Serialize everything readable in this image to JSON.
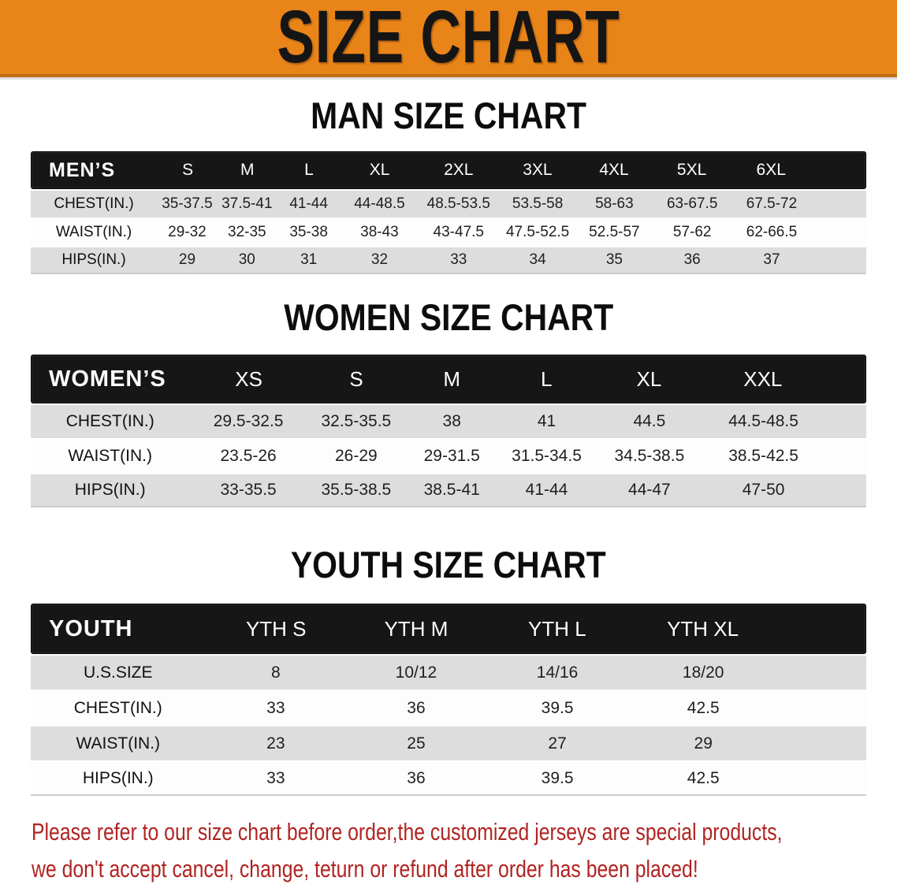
{
  "banner": {
    "title": "SIZE CHART"
  },
  "sections": [
    {
      "id": "men",
      "heading": "MAN SIZE CHART",
      "label": "MEN’S",
      "sizes": [
        "S",
        "M",
        "L",
        "XL",
        "2XL",
        "3XL",
        "4XL",
        "5XL",
        "6XL"
      ],
      "rows": [
        {
          "label": "CHEST(IN.)",
          "values": [
            "35-37.5",
            "37.5-41",
            "41-44",
            "44-48.5",
            "48.5-53.5",
            "53.5-58",
            "58-63",
            "63-67.5",
            "67.5-72"
          ]
        },
        {
          "label": "WAIST(IN.)",
          "values": [
            "29-32",
            "32-35",
            "35-38",
            "38-43",
            "43-47.5",
            "47.5-52.5",
            "52.5-57",
            "57-62",
            "62-66.5"
          ]
        },
        {
          "label": "HIPS(IN.)",
          "values": [
            "29",
            "30",
            "31",
            "32",
            "33",
            "34",
            "35",
            "36",
            "37"
          ]
        }
      ]
    },
    {
      "id": "women",
      "heading": "WOMEN SIZE CHART",
      "label": "WOMEN’S",
      "sizes": [
        "XS",
        "S",
        "M",
        "L",
        "XL",
        "XXL"
      ],
      "rows": [
        {
          "label": "CHEST(IN.)",
          "values": [
            "29.5-32.5",
            "32.5-35.5",
            "38",
            "41",
            "44.5",
            "44.5-48.5"
          ]
        },
        {
          "label": "WAIST(IN.)",
          "values": [
            "23.5-26",
            "26-29",
            "29-31.5",
            "31.5-34.5",
            "34.5-38.5",
            "38.5-42.5"
          ]
        },
        {
          "label": "HIPS(IN.)",
          "values": [
            "33-35.5",
            "35.5-38.5",
            "38.5-41",
            "41-44",
            "44-47",
            "47-50"
          ]
        }
      ]
    },
    {
      "id": "youth",
      "heading": "YOUTH SIZE CHART",
      "label": "YOUTH",
      "sizes": [
        "YTH S",
        "YTH M",
        "YTH L",
        "YTH XL"
      ],
      "rows": [
        {
          "label": "U.S.SIZE",
          "values": [
            "8",
            "10/12",
            "14/16",
            "18/20"
          ]
        },
        {
          "label": "CHEST(IN.)",
          "values": [
            "33",
            "36",
            "39.5",
            "42.5"
          ]
        },
        {
          "label": "WAIST(IN.)",
          "values": [
            "23",
            "25",
            "27",
            "29"
          ]
        },
        {
          "label": "HIPS(IN.)",
          "values": [
            "33",
            "36",
            "39.5",
            "42.5"
          ]
        }
      ]
    }
  ],
  "disclaimer": {
    "line1": "Please refer to our size chart before order,the customized jerseys are special products,",
    "line2": "we don't accept cancel, change, teturn or refund after order has been placed!"
  },
  "colors": {
    "banner-bg": "#e98419",
    "banner-text": "#151515",
    "bar-bg": "#161616",
    "bar-text": "#ffffff",
    "row-gray": "#dddddd",
    "row-white": "#fdfdfd",
    "disclaimer-red": "#b02422"
  }
}
